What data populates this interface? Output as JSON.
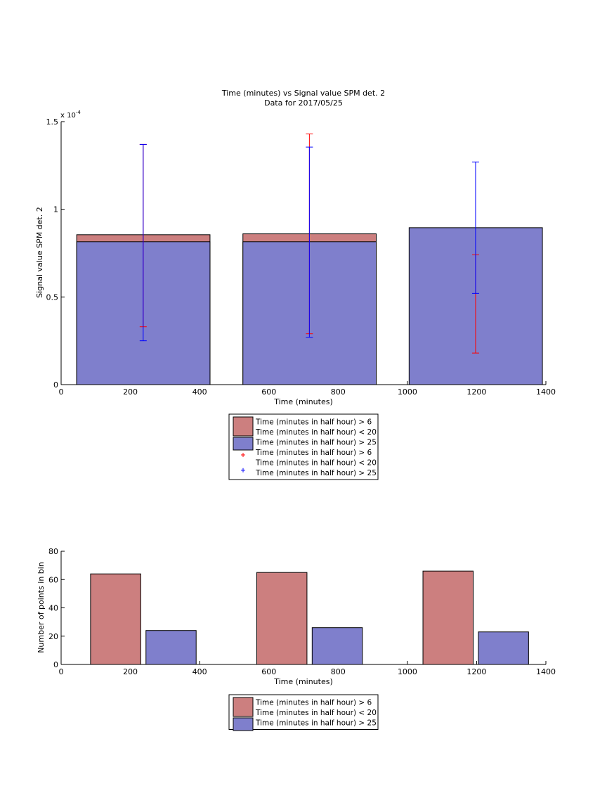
{
  "chart_data": [
    {
      "type": "bar",
      "title": "Time (minutes) vs Signal value SPM det. 2",
      "subtitle": "Data for 2017/05/25",
      "xlabel": "Time (minutes)",
      "ylabel": "Signal value SPM det. 2",
      "yexponent_label": "x 10",
      "yexponent_power": "-4",
      "scale_factor": 0.0001,
      "xlim": [
        0,
        1400
      ],
      "ylim": [
        0,
        1.5
      ],
      "xticks": [
        "0",
        "200",
        "400",
        "600",
        "800",
        "1000",
        "1200",
        "1400"
      ],
      "yticks": [
        "0",
        "0.5",
        "1",
        "1.5"
      ],
      "bins": [
        {
          "x_start": 45,
          "x_end": 430
        },
        {
          "x_start": 525,
          "x_end": 910
        },
        {
          "x_start": 1005,
          "x_end": 1390
        }
      ],
      "series": [
        {
          "name": "Time (minutes in half hour) > 6 Time (minutes in half hour) < 20",
          "color": "#cc7f7f",
          "values": [
            0.855,
            0.86,
            null
          ]
        },
        {
          "name": "Time (minutes in half hour) > 25",
          "color": "#7f7fcc",
          "values": [
            0.815,
            0.815,
            0.895
          ]
        }
      ],
      "error_bars": [
        {
          "name": "Time (minutes in half hour) > 6 Time (minutes in half hour) < 20",
          "color": "#ff0000",
          "points": [
            {
              "x": 237,
              "low": 0.33,
              "high": 1.37
            },
            {
              "x": 717,
              "low": 0.29,
              "high": 1.43
            },
            {
              "x": 1197,
              "low": 0.18,
              "high": 0.74
            }
          ]
        },
        {
          "name": "Time (minutes in half hour) > 25",
          "color": "#0000ff",
          "points": [
            {
              "x": 237,
              "low": 0.25,
              "high": 1.37
            },
            {
              "x": 717,
              "low": 0.27,
              "high": 1.355
            },
            {
              "x": 1197,
              "low": 0.52,
              "high": 1.27
            }
          ]
        }
      ],
      "legend": [
        {
          "kind": "patch",
          "color": "#cc7f7f",
          "lines": [
            "Time (minutes in half hour) > 6",
            "Time (minutes in half hour) < 20"
          ]
        },
        {
          "kind": "patch",
          "color": "#7f7fcc",
          "lines": [
            "Time (minutes in half hour) > 25"
          ]
        },
        {
          "kind": "marker",
          "color": "#ff0000",
          "lines": [
            "Time (minutes in half hour) > 6",
            "Time (minutes in half hour) < 20"
          ]
        },
        {
          "kind": "marker",
          "color": "#0000ff",
          "lines": [
            "Time (minutes in half hour) > 25"
          ]
        }
      ]
    },
    {
      "type": "bar",
      "xlabel": "Time (minutes)",
      "ylabel": "Number of points in bin",
      "xlim": [
        0,
        1400
      ],
      "ylim": [
        0,
        80
      ],
      "xticks": [
        "0",
        "200",
        "400",
        "600",
        "800",
        "1000",
        "1200",
        "1400"
      ],
      "yticks": [
        "0",
        "20",
        "40",
        "60",
        "80"
      ],
      "bars": [
        {
          "x_start": 85,
          "x_end": 230,
          "value": 64,
          "series": 0
        },
        {
          "x_start": 245,
          "x_end": 390,
          "value": 24,
          "series": 1
        },
        {
          "x_start": 565,
          "x_end": 710,
          "value": 65,
          "series": 0
        },
        {
          "x_start": 725,
          "x_end": 870,
          "value": 26,
          "series": 1
        },
        {
          "x_start": 1045,
          "x_end": 1190,
          "value": 66,
          "series": 0
        },
        {
          "x_start": 1205,
          "x_end": 1350,
          "value": 23,
          "series": 1
        }
      ],
      "series": [
        {
          "name": "Time (minutes in half hour) > 6 Time (minutes in half hour) < 20",
          "color": "#cc7f7f"
        },
        {
          "name": "Time (minutes in half hour) > 25",
          "color": "#7f7fcc"
        }
      ],
      "legend": [
        {
          "kind": "patch",
          "color": "#cc7f7f",
          "lines": [
            "Time (minutes in half hour) > 6",
            "Time (minutes in half hour) < 20"
          ]
        },
        {
          "kind": "patch",
          "color": "#7f7fcc",
          "lines": [
            "Time (minutes in half hour) > 25"
          ]
        }
      ]
    }
  ]
}
